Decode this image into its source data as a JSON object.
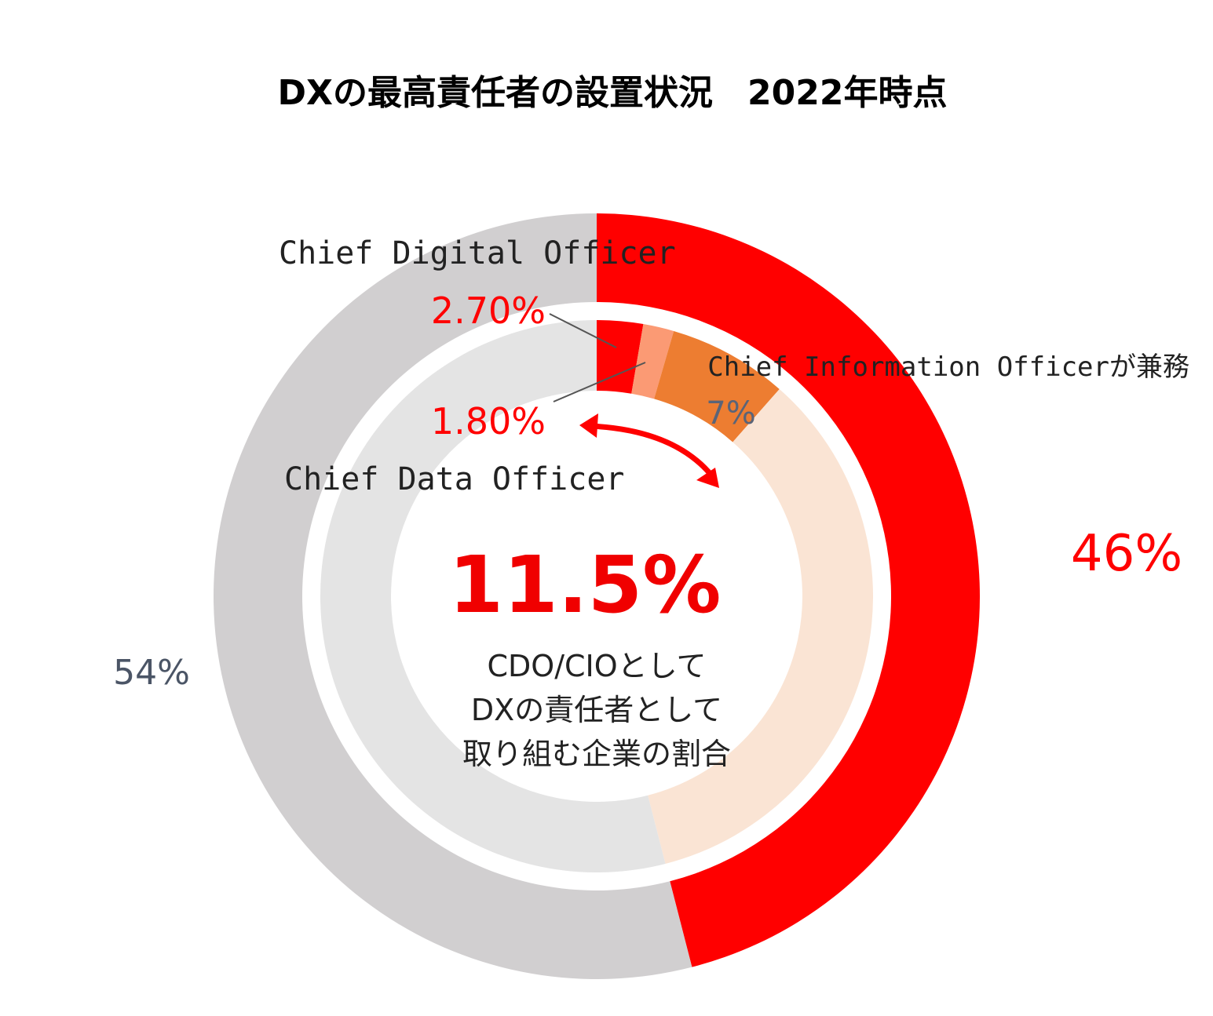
{
  "chart_data": [
    {
      "type": "pie",
      "title": "DXの最高責任者の設置状況　2022年時点",
      "ring": "outer",
      "slices": [
        {
          "label": "",
          "value": 46,
          "value_label": "46%",
          "color": "#ff0000"
        },
        {
          "label": "",
          "value": 54,
          "value_label": "54%",
          "color": "#d1cfd0"
        }
      ]
    },
    {
      "type": "pie",
      "ring": "inner",
      "slices": [
        {
          "label": "Chief Digital Officer",
          "value": 2.7,
          "value_label": "2.70%",
          "color": "#ff0000"
        },
        {
          "label": "Chief Data Officer",
          "value": 1.8,
          "value_label": "1.80%",
          "color": "#fb9a74"
        },
        {
          "label": "Chief Information Officerが兼務",
          "value": 7,
          "value_label": "7%",
          "color": "#ed7d31"
        },
        {
          "label": "",
          "value": 34.5,
          "value_label": "",
          "color": "#fae4d4"
        },
        {
          "label": "",
          "value": 54,
          "value_label": "",
          "color": "#e4e4e4"
        }
      ],
      "center": {
        "value": "11.5%",
        "lines": [
          "CDO/CIOとして",
          "DXの責任者として",
          "取り組む企業の割合"
        ]
      }
    }
  ],
  "colors": {
    "label_red": "#ff0000",
    "label_gray": "#4b5566",
    "arrow": "#ff0000"
  }
}
